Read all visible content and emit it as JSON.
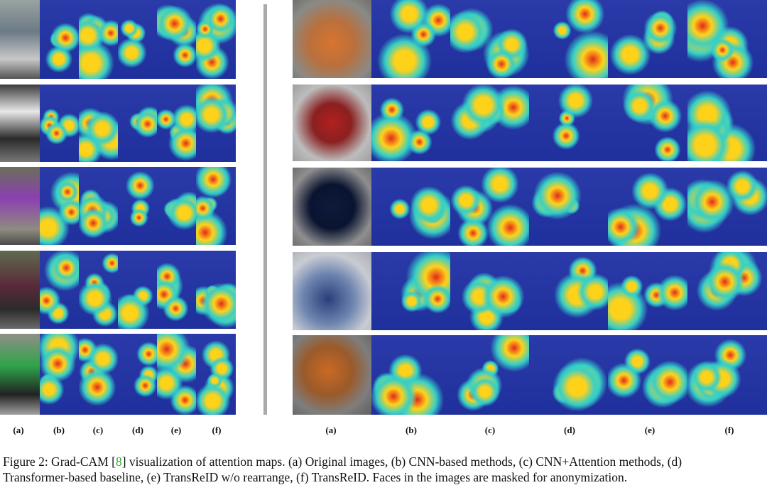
{
  "figure": {
    "person_panel": {
      "column_labels": [
        "(a)",
        "(b)",
        "(c)",
        "(d)",
        "(e)",
        "(f)"
      ],
      "rows": 5
    },
    "vehicle_panel": {
      "column_labels": [
        "(a)",
        "(b)",
        "(c)",
        "(d)",
        "(e)",
        "(f)"
      ],
      "rows": 5
    },
    "caption": {
      "prefix": "Figure 2: Grad-CAM [",
      "ref": "8",
      "line1_rest": "] visualization of attention maps.  (a) Original images, (b) CNN-based methods, (c) CNN+Attention methods, (d)",
      "line2": "Transformer-based baseline, (e) TransReID w/o rearrange, (f) TransReID. Faces in the images are masked for anonymization."
    },
    "colors": {
      "heat_low": "#1f2f9c",
      "heat_mid": "#35d0c8",
      "heat_high": "#ffd21a",
      "heat_peak": "#e22a1a",
      "separator": "#a9a9a9",
      "ref_link": "#2fa82f"
    }
  }
}
